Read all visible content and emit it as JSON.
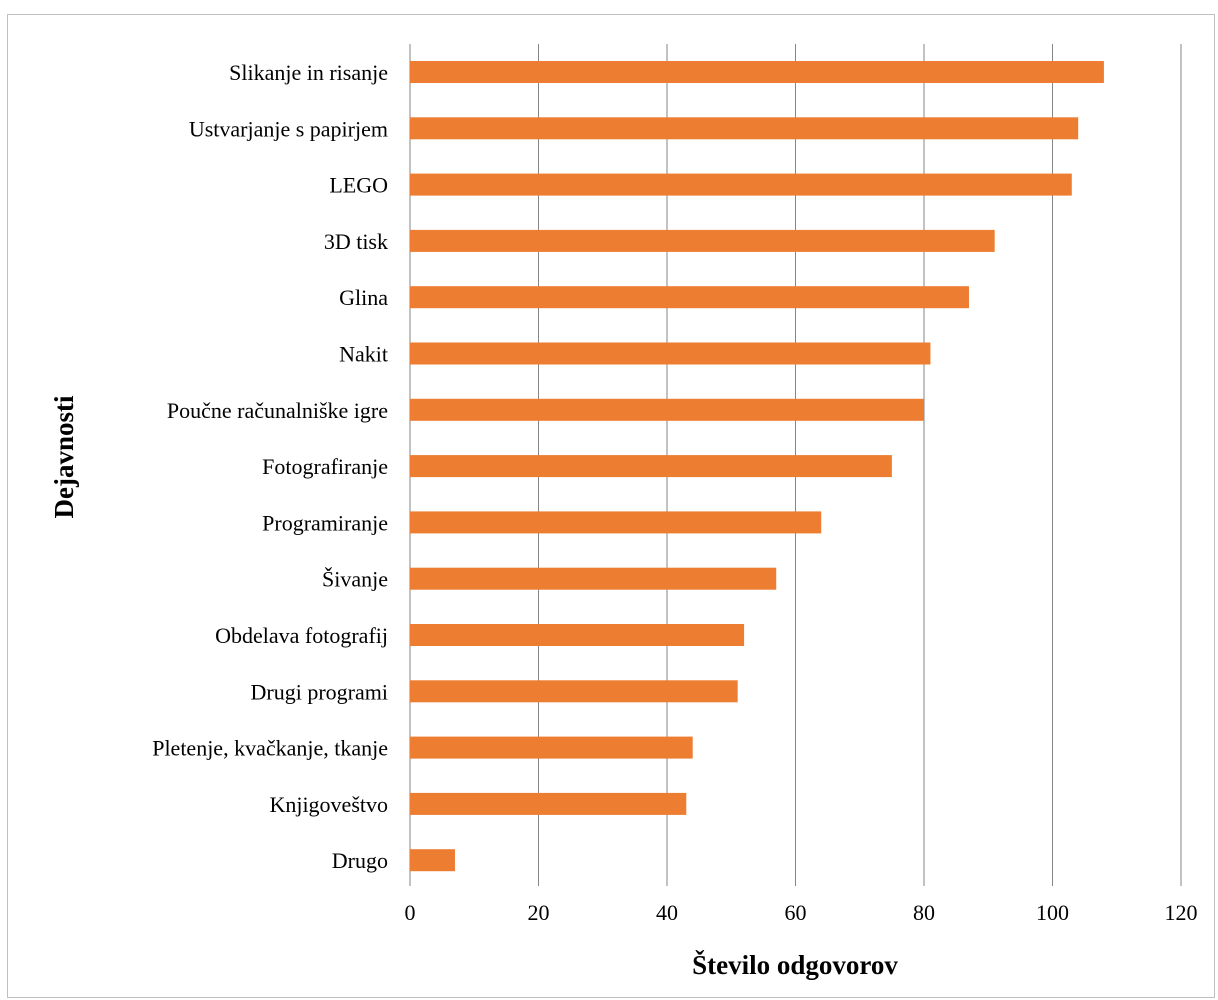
{
  "chart_data": {
    "type": "bar",
    "orientation": "horizontal",
    "categories": [
      "Slikanje in risanje",
      "Ustvarjanje s papirjem",
      "LEGO",
      "3D tisk",
      "Glina",
      "Nakit",
      "Poučne računalniške igre",
      "Fotografiranje",
      "Programiranje",
      "Šivanje",
      "Obdelava fotografij",
      "Drugi programi",
      "Pletenje, kvačkanje, tkanje",
      "Knjigoveštvo",
      "Drugo"
    ],
    "values": [
      108,
      104,
      103,
      91,
      87,
      81,
      80,
      75,
      64,
      57,
      52,
      51,
      44,
      43,
      7
    ],
    "xlabel": "Število odgovorov",
    "ylabel": "Dejavnosti",
    "xlim": [
      0,
      120
    ],
    "xticks": [
      "0",
      "20",
      "40",
      "60",
      "80",
      "100",
      "120"
    ],
    "grid": "vertical",
    "bar_color": "#ed7d31",
    "grid_color": "#868686"
  }
}
